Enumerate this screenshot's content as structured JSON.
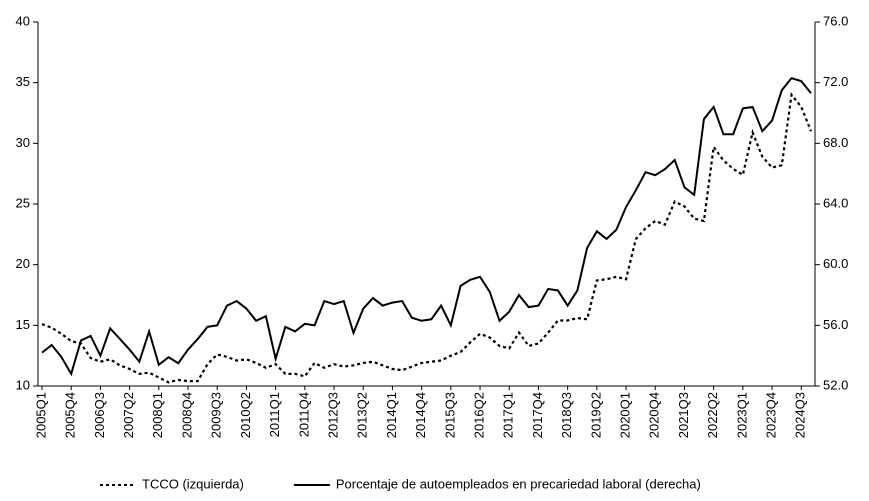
{
  "chart_data": {
    "type": "line",
    "categories": [
      "2005Q1",
      null,
      null,
      "2005Q4",
      null,
      null,
      "2006Q3",
      null,
      null,
      "2007Q2",
      null,
      null,
      "2008Q1",
      null,
      null,
      "2008Q4",
      null,
      null,
      "2009Q3",
      null,
      null,
      "2010Q2",
      null,
      null,
      "2011Q1",
      null,
      null,
      "2011Q4",
      null,
      null,
      "2012Q3",
      null,
      null,
      "2013Q2",
      null,
      null,
      "2014Q1",
      null,
      null,
      "2014Q4",
      null,
      null,
      "2015Q3",
      null,
      null,
      "2016Q2",
      null,
      null,
      "2017Q1",
      null,
      null,
      "2017Q4",
      null,
      null,
      "2018Q3",
      null,
      null,
      "2019Q2",
      null,
      null,
      "2020Q1",
      null,
      null,
      "2020Q4",
      null,
      null,
      "2021Q3",
      null,
      null,
      "2022Q2",
      null,
      null,
      "2023Q1",
      null,
      null,
      "2023Q4",
      null,
      null,
      "2024Q3",
      null
    ],
    "series": [
      {
        "name": "TCCO (izquierda)",
        "color": "#000000",
        "dash": "dotted",
        "axis": "y",
        "values": [
          15.1,
          14.8,
          14.3,
          13.7,
          13.5,
          12.3,
          12.0,
          12.2,
          11.7,
          11.4,
          11.0,
          11.1,
          10.7,
          10.3,
          10.5,
          10.4,
          10.4,
          11.8,
          12.6,
          12.4,
          12.1,
          12.2,
          11.9,
          11.5,
          11.8,
          11.0,
          11.0,
          10.8,
          11.9,
          11.5,
          11.8,
          11.6,
          11.7,
          11.9,
          12.0,
          11.7,
          11.4,
          11.3,
          11.6,
          11.9,
          12.0,
          12.1,
          12.5,
          12.8,
          13.6,
          14.3,
          14.0,
          13.3,
          13.1,
          14.4,
          13.3,
          13.5,
          14.4,
          15.4,
          15.4,
          15.6,
          15.5,
          18.7,
          18.8,
          19.0,
          18.8,
          22.1,
          23.0,
          23.6,
          23.3,
          25.2,
          24.8,
          23.8,
          23.6,
          29.7,
          28.6,
          27.9,
          27.4,
          30.9,
          28.9,
          28.0,
          28.2,
          34.0,
          33.0,
          31.0
        ]
      },
      {
        "name": "Porcentaje de autoempleados en precariedad laboral (derecha)",
        "color": "#000000",
        "dash": "solid",
        "axis": "y2",
        "values": [
          54.2,
          54.7,
          53.9,
          52.8,
          55.0,
          55.3,
          54.0,
          55.8,
          55.1,
          54.4,
          53.6,
          55.6,
          53.4,
          53.9,
          53.5,
          54.4,
          55.1,
          55.9,
          56.0,
          57.3,
          57.6,
          57.1,
          56.3,
          56.6,
          53.8,
          55.9,
          55.6,
          56.1,
          56.0,
          57.6,
          57.4,
          57.6,
          55.5,
          57.1,
          57.8,
          57.3,
          57.5,
          57.6,
          56.5,
          56.3,
          56.4,
          57.3,
          56.0,
          58.6,
          59.0,
          59.2,
          58.2,
          56.3,
          56.9,
          58.0,
          57.2,
          57.3,
          58.4,
          58.3,
          57.3,
          58.3,
          61.1,
          62.2,
          61.7,
          62.3,
          63.8,
          64.9,
          66.1,
          65.9,
          66.3,
          66.9,
          65.1,
          64.6,
          69.6,
          70.4,
          68.6,
          68.6,
          70.3,
          70.4,
          68.8,
          69.5,
          71.5,
          72.3,
          72.1,
          71.3
        ]
      }
    ],
    "ylim": [
      10,
      40
    ],
    "yticks": [
      10,
      15,
      20,
      25,
      30,
      35,
      40
    ],
    "y2lim": [
      52,
      76
    ],
    "y2ticks": [
      {
        "value": 52,
        "label": "52.0"
      },
      {
        "value": 56,
        "label": "56.0"
      },
      {
        "value": 60,
        "label": "60.0"
      },
      {
        "value": 64,
        "label": "64.0"
      },
      {
        "value": 68,
        "label": "68.0"
      },
      {
        "value": 72,
        "label": "72.0"
      },
      {
        "value": 76,
        "label": "76.0"
      }
    ],
    "grid": false,
    "legend": "bottom"
  }
}
